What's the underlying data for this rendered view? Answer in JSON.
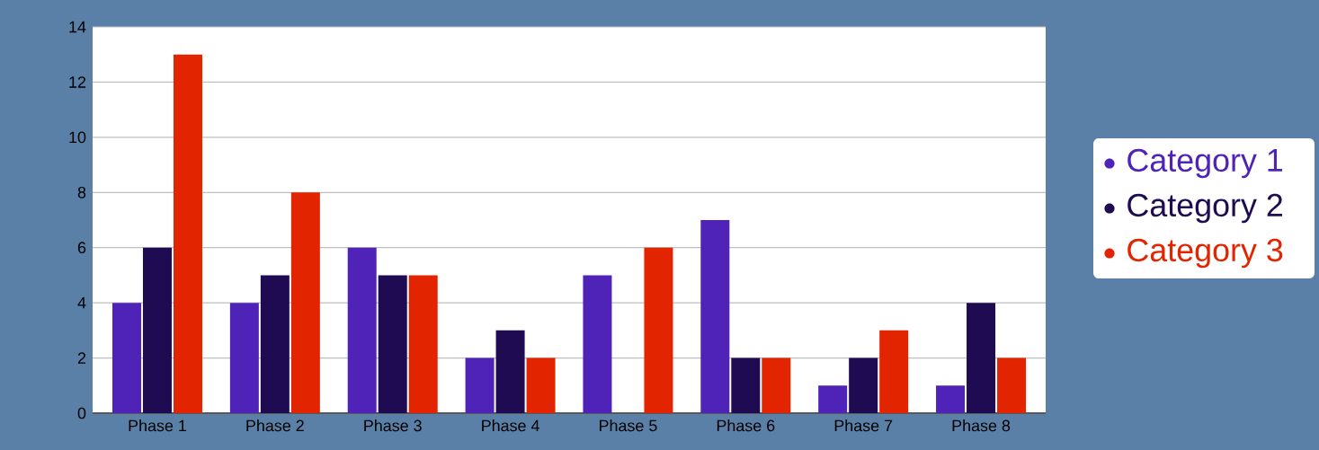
{
  "chart_data": {
    "type": "bar",
    "categories": [
      "Phase 1",
      "Phase 2",
      "Phase 3",
      "Phase 4",
      "Phase 5",
      "Phase 6",
      "Phase 7",
      "Phase 8"
    ],
    "series": [
      {
        "name": "Category 1",
        "color": "#4f23b8",
        "values": [
          4,
          4,
          6,
          2,
          5,
          7,
          1,
          1
        ]
      },
      {
        "name": "Category 2",
        "color": "#1e0b52",
        "values": [
          6,
          5,
          5,
          3,
          0,
          2,
          2,
          4
        ]
      },
      {
        "name": "Category 3",
        "color": "#e22500",
        "values": [
          13,
          8,
          5,
          2,
          6,
          2,
          3,
          2
        ]
      }
    ],
    "ylim": [
      0,
      14
    ],
    "yticks": [
      0,
      2,
      4,
      6,
      8,
      10,
      12,
      14
    ],
    "grid": "y",
    "legend": "right"
  }
}
